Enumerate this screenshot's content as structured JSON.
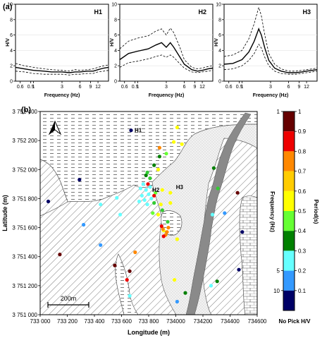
{
  "panel_a_label": "(a)",
  "panel_b_label": "(b)",
  "chart_data": [
    {
      "type": "line",
      "title": "H1",
      "xlabel": "Frequency (Hz)",
      "ylabel": "H/V",
      "xscale": "log",
      "xlim": [
        0.5,
        18
      ],
      "ylim": [
        0,
        10
      ],
      "x_ticks": [
        "0.6",
        "0.9",
        "1",
        "3",
        "6",
        "9",
        "12"
      ],
      "y_ticks": [
        "0",
        "2",
        "4",
        "6",
        "8",
        "10"
      ],
      "freq": [
        0.5,
        0.7,
        1.0,
        1.5,
        2.0,
        3.0,
        4.0,
        5.0,
        6.0,
        8.0,
        10.0,
        12.0,
        15.0,
        18.0
      ],
      "series": [
        {
          "values": [
            2.3,
            2.0,
            1.8,
            1.6,
            1.5,
            1.4,
            1.3,
            1.5,
            1.4,
            1.5,
            1.6,
            1.8,
            2.0,
            2.1
          ]
        },
        {
          "values": [
            1.8,
            1.6,
            1.4,
            1.3,
            1.2,
            1.2,
            1.1,
            1.2,
            1.2,
            1.3,
            1.3,
            1.5,
            1.7,
            1.8
          ]
        },
        {
          "values": [
            1.3,
            1.2,
            1.0,
            0.9,
            0.9,
            0.9,
            0.8,
            0.9,
            0.9,
            1.0,
            1.0,
            1.2,
            1.3,
            1.4
          ]
        }
      ]
    },
    {
      "type": "line",
      "title": "H2",
      "xlabel": "Frequency (Hz)",
      "ylabel": "H/V",
      "xscale": "log",
      "xlim": [
        0.5,
        18
      ],
      "ylim": [
        0,
        10
      ],
      "x_ticks": [
        "0.6",
        "0.9",
        "1",
        "3",
        "6",
        "9",
        "12"
      ],
      "y_ticks": [
        "0",
        "2",
        "4",
        "6",
        "8",
        "10"
      ],
      "freq": [
        0.5,
        0.7,
        1.0,
        1.5,
        2.0,
        2.5,
        3.0,
        3.5,
        4.0,
        5.0,
        6.0,
        8.0,
        10.0,
        12.0,
        15.0,
        18.0
      ],
      "series": [
        {
          "values": [
            4.2,
            5.2,
            5.6,
            5.9,
            6.5,
            6.8,
            6.0,
            6.9,
            6.3,
            4.5,
            2.8,
            1.8,
            1.6,
            1.7,
            1.9,
            2.0
          ]
        },
        {
          "values": [
            2.8,
            3.6,
            3.9,
            4.2,
            4.7,
            5.0,
            4.4,
            5.0,
            4.4,
            3.2,
            2.2,
            1.5,
            1.3,
            1.4,
            1.6,
            1.7
          ]
        },
        {
          "values": [
            1.8,
            2.4,
            2.6,
            2.9,
            3.2,
            3.4,
            3.1,
            3.4,
            3.1,
            2.3,
            1.7,
            1.2,
            1.1,
            1.2,
            1.3,
            1.4
          ]
        }
      ]
    },
    {
      "type": "line",
      "title": "H3",
      "xlabel": "Frequency (Hz)",
      "ylabel": "H/V",
      "xscale": "log",
      "xlim": [
        0.5,
        18
      ],
      "ylim": [
        0,
        10
      ],
      "x_ticks": [
        "0.6",
        "0.9",
        "1",
        "3",
        "6",
        "9",
        "12"
      ],
      "y_ticks": [
        "0",
        "2",
        "4",
        "6",
        "8",
        "10"
      ],
      "freq": [
        0.5,
        0.7,
        1.0,
        1.3,
        1.6,
        1.9,
        2.1,
        2.4,
        2.8,
        3.5,
        4.5,
        6.0,
        8.0,
        10.0,
        12.0,
        15.0,
        18.0
      ],
      "series": [
        {
          "values": [
            3.2,
            3.4,
            4.0,
            5.5,
            7.5,
            9.6,
            8.5,
            6.0,
            3.6,
            2.2,
            1.6,
            1.3,
            1.3,
            1.4,
            1.5,
            1.6,
            1.7
          ]
        },
        {
          "values": [
            2.2,
            2.3,
            2.8,
            3.8,
            5.2,
            6.8,
            6.0,
            4.3,
            2.7,
            1.7,
            1.3,
            1.1,
            1.1,
            1.2,
            1.3,
            1.4,
            1.5
          ]
        },
        {
          "values": [
            1.5,
            1.6,
            2.0,
            2.7,
            3.6,
            4.8,
            4.3,
            3.1,
            2.0,
            1.3,
            1.0,
            0.9,
            0.9,
            1.0,
            1.1,
            1.2,
            1.3
          ]
        }
      ]
    },
    {
      "type": "scatter",
      "xlabel": "Longitude (m)",
      "ylabel": "Latitude (m)",
      "xlim": [
        733000,
        734600
      ],
      "ylim": [
        3751000,
        3752400
      ],
      "x_ticks": [
        "733 000",
        "733 200",
        "733 400",
        "733 600",
        "733 800",
        "734000",
        "734200",
        "734400",
        "734600"
      ],
      "y_ticks": [
        "3 751 000",
        "3 751 200",
        "3 751 400",
        "3 751 600",
        "3 751 800",
        "3 752 000",
        "3 752 200",
        "3 752 400"
      ],
      "x_tick_values": [
        733000,
        733200,
        733400,
        733600,
        733800,
        734000,
        734200,
        734400,
        734600
      ],
      "y_tick_values": [
        3751000,
        3751200,
        3751400,
        3751600,
        3751800,
        3752000,
        3752200,
        3752400
      ],
      "site_labels": [
        {
          "name": "H1",
          "x": 733670,
          "y": 3752270
        },
        {
          "name": "H2",
          "x": 733800,
          "y": 3751860
        },
        {
          "name": "H3",
          "x": 733975,
          "y": 3751880
        }
      ],
      "scale_bar_label": "200m",
      "points": [
        {
          "x": 733670,
          "y": 3752270,
          "c": "#000066"
        },
        {
          "x": 733290,
          "y": 3751930,
          "c": "#000066"
        },
        {
          "x": 733060,
          "y": 3751780,
          "c": "#000066"
        },
        {
          "x": 734490,
          "y": 3751570,
          "c": "#000066"
        },
        {
          "x": 734465,
          "y": 3751310,
          "c": "#000066"
        },
        {
          "x": 733880,
          "y": 3752090,
          "c": "#008000"
        },
        {
          "x": 733840,
          "y": 3752030,
          "c": "#008000"
        },
        {
          "x": 733780,
          "y": 3751960,
          "c": "#008000"
        },
        {
          "x": 734070,
          "y": 3751150,
          "c": "#008000"
        },
        {
          "x": 734280,
          "y": 3752010,
          "c": "#008000"
        },
        {
          "x": 734305,
          "y": 3751230,
          "c": "#008000"
        },
        {
          "x": 733900,
          "y": 3751720,
          "c": "#33cc33"
        },
        {
          "x": 733840,
          "y": 3751770,
          "c": "#33cc33"
        },
        {
          "x": 733810,
          "y": 3751940,
          "c": "#33cc33"
        },
        {
          "x": 733790,
          "y": 3751980,
          "c": "#33cc33"
        },
        {
          "x": 733940,
          "y": 3751640,
          "c": "#33cc33"
        },
        {
          "x": 734310,
          "y": 3751870,
          "c": "#33cc33"
        },
        {
          "x": 733850,
          "y": 3751840,
          "c": "#66ff33"
        },
        {
          "x": 733830,
          "y": 3751700,
          "c": "#66ff33"
        },
        {
          "x": 733930,
          "y": 3752110,
          "c": "#66ff33"
        },
        {
          "x": 734010,
          "y": 3752290,
          "c": "#ffff00"
        },
        {
          "x": 734045,
          "y": 3752175,
          "c": "#ffff00"
        },
        {
          "x": 733985,
          "y": 3752190,
          "c": "#ffff00"
        },
        {
          "x": 733900,
          "y": 3751860,
          "c": "#ffff00"
        },
        {
          "x": 733960,
          "y": 3751840,
          "c": "#ffff00"
        },
        {
          "x": 733890,
          "y": 3751760,
          "c": "#ffff00"
        },
        {
          "x": 733960,
          "y": 3751770,
          "c": "#ffff00"
        },
        {
          "x": 733870,
          "y": 3751690,
          "c": "#ffff00"
        },
        {
          "x": 734010,
          "y": 3751520,
          "c": "#ffff00"
        },
        {
          "x": 733990,
          "y": 3751240,
          "c": "#ffff00"
        },
        {
          "x": 733870,
          "y": 3752000,
          "c": "#ffff00"
        },
        {
          "x": 733910,
          "y": 3751580,
          "c": "#ffff00"
        },
        {
          "x": 733905,
          "y": 3751590,
          "c": "#ff8800"
        },
        {
          "x": 733935,
          "y": 3751570,
          "c": "#ff8800"
        },
        {
          "x": 733945,
          "y": 3751600,
          "c": "#ff8800"
        },
        {
          "x": 733925,
          "y": 3751550,
          "c": "#ff8800"
        },
        {
          "x": 733880,
          "y": 3752150,
          "c": "#ff8800"
        },
        {
          "x": 733700,
          "y": 3751430,
          "c": "#ff8800"
        },
        {
          "x": 733910,
          "y": 3751540,
          "c": "#ee0000"
        },
        {
          "x": 733895,
          "y": 3751610,
          "c": "#ee0000"
        },
        {
          "x": 733795,
          "y": 3751900,
          "c": "#ee0000"
        },
        {
          "x": 733840,
          "y": 3751820,
          "c": "#ee0000"
        },
        {
          "x": 733640,
          "y": 3751240,
          "c": "#ee0000"
        },
        {
          "x": 733145,
          "y": 3751415,
          "c": "#660000"
        },
        {
          "x": 733550,
          "y": 3751340,
          "c": "#660000"
        },
        {
          "x": 733660,
          "y": 3751300,
          "c": "#660000"
        },
        {
          "x": 734455,
          "y": 3751840,
          "c": "#660000"
        },
        {
          "x": 733780,
          "y": 3751860,
          "c": "#66ffff"
        },
        {
          "x": 733800,
          "y": 3751830,
          "c": "#66ffff"
        },
        {
          "x": 733770,
          "y": 3751790,
          "c": "#66ffff"
        },
        {
          "x": 733820,
          "y": 3751800,
          "c": "#66ffff"
        },
        {
          "x": 733790,
          "y": 3751760,
          "c": "#66ffff"
        },
        {
          "x": 733750,
          "y": 3751820,
          "c": "#66ffff"
        },
        {
          "x": 733740,
          "y": 3751870,
          "c": "#66ffff"
        },
        {
          "x": 733810,
          "y": 3751880,
          "c": "#66ffff"
        },
        {
          "x": 733760,
          "y": 3751900,
          "c": "#66ffff"
        },
        {
          "x": 733730,
          "y": 3751780,
          "c": "#66ffff"
        },
        {
          "x": 733590,
          "y": 3751690,
          "c": "#66ffff"
        },
        {
          "x": 733565,
          "y": 3751805,
          "c": "#66ffff"
        },
        {
          "x": 733445,
          "y": 3751760,
          "c": "#66ffff"
        },
        {
          "x": 734270,
          "y": 3751690,
          "c": "#66ffff"
        },
        {
          "x": 734260,
          "y": 3751200,
          "c": "#66ffff"
        },
        {
          "x": 733660,
          "y": 3751130,
          "c": "#66ffff"
        },
        {
          "x": 733320,
          "y": 3751620,
          "c": "#3399ff"
        },
        {
          "x": 733445,
          "y": 3751480,
          "c": "#3399ff"
        },
        {
          "x": 734010,
          "y": 3751090,
          "c": "#3399ff"
        },
        {
          "x": 734360,
          "y": 3751700,
          "c": "#3399ff"
        }
      ]
    },
    {
      "type": "heatmap",
      "colorbar_left_label": "Frequency (Hz)",
      "colorbar_right_label": "Period(s)",
      "left_ticks": [
        "1",
        "5",
        "10"
      ],
      "left_tick_periods": [
        1,
        0.2,
        0.1
      ],
      "right_ticks": [
        "1",
        "0.9",
        "0.8",
        "0.7",
        "0.6",
        "0.5",
        "0.4",
        "0.3",
        "0.2",
        "0.1"
      ],
      "bottom_label": "No Pick H/V",
      "bands": [
        {
          "from": 0.9,
          "to": 1.0,
          "color": "#660000"
        },
        {
          "from": 0.8,
          "to": 0.9,
          "color": "#ee0000"
        },
        {
          "from": 0.7,
          "to": 0.8,
          "color": "#ff8800"
        },
        {
          "from": 0.6,
          "to": 0.7,
          "color": "#ffcc00"
        },
        {
          "from": 0.5,
          "to": 0.6,
          "color": "#ffff00"
        },
        {
          "from": 0.4,
          "to": 0.5,
          "color": "#66ff33"
        },
        {
          "from": 0.3,
          "to": 0.4,
          "color": "#008000"
        },
        {
          "from": 0.2,
          "to": 0.3,
          "color": "#66ffff"
        },
        {
          "from": 0.1,
          "to": 0.2,
          "color": "#3399ff"
        },
        {
          "from": 0.0,
          "to": 0.1,
          "color": "#000066"
        }
      ]
    }
  ]
}
